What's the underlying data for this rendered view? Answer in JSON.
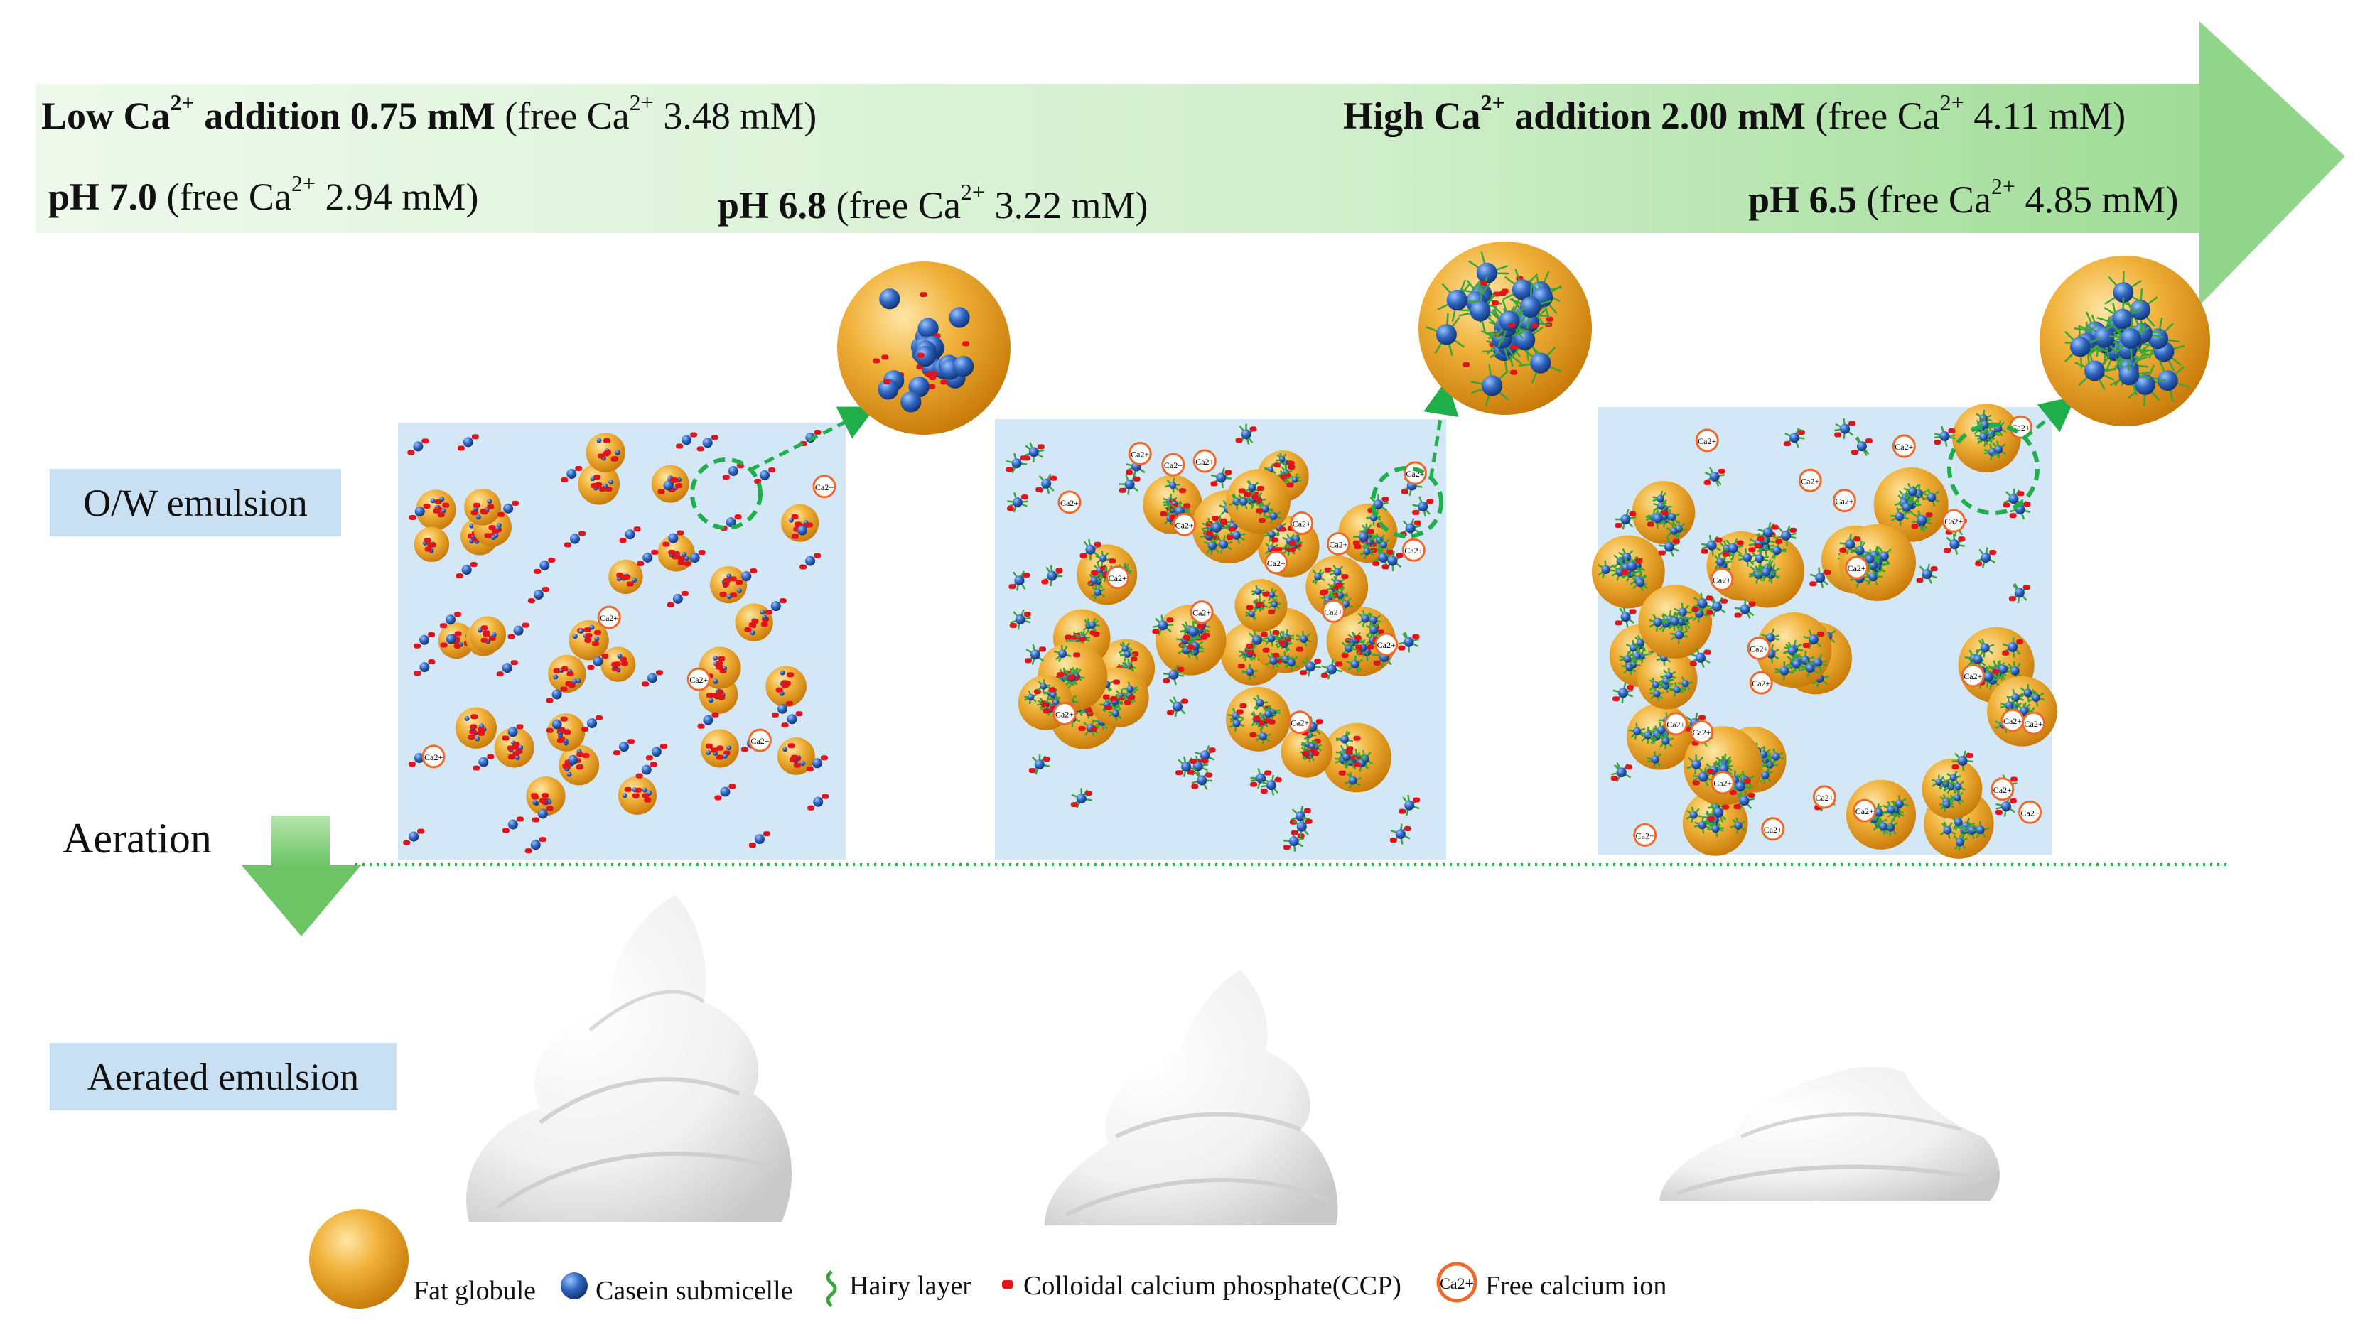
{
  "header": {
    "low_ca": {
      "prefix": "Low Ca",
      "sup": "2+",
      "mid": " addition 0.75 mM",
      "free": " (free Ca",
      "free_sup": "2+",
      "free_val": " 3.48 mM)"
    },
    "high_ca": {
      "prefix": "High Ca",
      "sup": "2+",
      "mid": " addition 2.00 mM",
      "free": " (free Ca",
      "free_sup": "2+",
      "free_val": " 4.11 mM)"
    },
    "ph70": {
      "ph": "pH 7.0",
      "free": " (free Ca",
      "free_sup": "2+",
      "free_val": " 2.94 mM)"
    },
    "ph68": {
      "ph": "pH 6.8",
      "free": " (free Ca",
      "free_sup": "2+",
      "free_val": " 3.22 mM)"
    },
    "ph65": {
      "ph": "pH 6.5",
      "free": " (free Ca",
      "free_sup": "2+",
      "free_val": " 4.85 mM)"
    }
  },
  "labels": {
    "ow_emulsion": "O/W emulsion",
    "aeration": "Aeration",
    "aerated_emulsion": "Aerated emulsion"
  },
  "ion_label": "Ca2+",
  "legend": {
    "fat_globule": "Fat globule",
    "casein_submicelle": "Casein submicelle",
    "hairy_layer": "Hairy layer",
    "ccp": "Colloidal calcium phosphate(CCP)",
    "free_calcium_ion": "Free calcium ion"
  },
  "colors": {
    "arrow_band": "#d7f0d3",
    "arrow_head": "#92d68b",
    "fat_globule": "#eba21f",
    "casein": "#2f65bf",
    "ccp": "#e0141a",
    "hairy_layer": "#3aa63a",
    "ion_ring": "#ef6a2a",
    "panel_bg": "#d4e7f6",
    "dashed_green": "#1fae4a"
  }
}
